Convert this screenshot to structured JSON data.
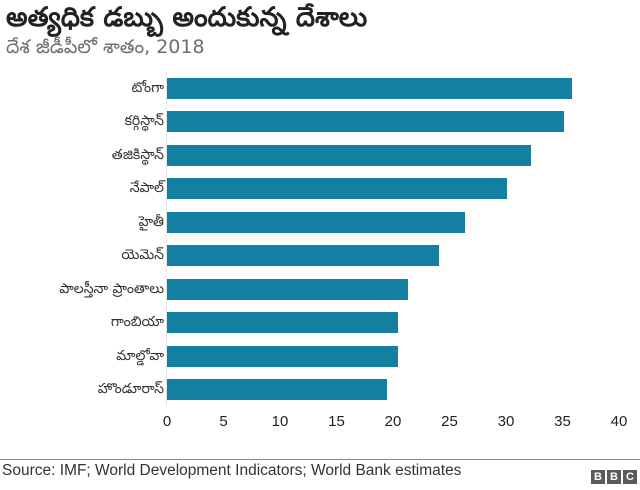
{
  "header": {
    "title": "అత్యధిక డబ్బు అందుకున్న దేశాలు",
    "subtitle": "దేశ జీడీపీలో శాతం, 2018"
  },
  "footer": {
    "source": "Source: IMF; World Development Indicators; World Bank estimates",
    "logo_letters": [
      "B",
      "B",
      "C"
    ]
  },
  "colors": {
    "bar": "#1380a1",
    "logo_bg": "#5a5a5a"
  },
  "chart_data": {
    "type": "bar",
    "orientation": "horizontal",
    "title": "అత్యధిక డబ్బు అందుకున్న దేశాలు",
    "subtitle": "దేశ జీడీపీలో శాతం, 2018",
    "xlabel": "",
    "ylabel": "",
    "xlim": [
      0,
      40
    ],
    "xticks": [
      "0",
      "5",
      "10",
      "15",
      "20",
      "25",
      "30",
      "35",
      "40"
    ],
    "grid": false,
    "legend": null,
    "categories": [
      "టోంగా",
      "కర్గిస్థాన్",
      "తజికిస్థాన్",
      "నేపాల్",
      "హైతీ",
      "యెమెన్",
      "పాలస్తీనా ప్రాంతాలు",
      "గాంబియా",
      "మాల్డోవా",
      "హొండూరాస్"
    ],
    "values": [
      35.8,
      35.1,
      32.2,
      30.1,
      26.4,
      24.1,
      21.3,
      20.4,
      20.4,
      19.5
    ],
    "source": "Source: IMF; World Development Indicators; World Bank estimates"
  }
}
